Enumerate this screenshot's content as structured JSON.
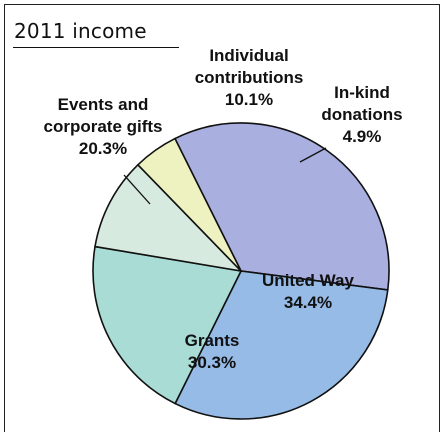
{
  "chart_data": {
    "type": "pie",
    "title": "2011 income",
    "unit": "%",
    "slices": [
      {
        "name": "United Way",
        "value": 34.4,
        "value_label": "34.4%",
        "color": "#a9afdf",
        "label_lines": [
          "United Way"
        ]
      },
      {
        "name": "Grants",
        "value": 30.3,
        "value_label": "30.3%",
        "color": "#95bbe6",
        "label_lines": [
          "Grants"
        ]
      },
      {
        "name": "Events and corporate gifts",
        "value": 20.3,
        "value_label": "20.3%",
        "color": "#a9dcd5",
        "label_lines": [
          "Events and",
          "corporate gifts"
        ]
      },
      {
        "name": "Individual contributions",
        "value": 10.1,
        "value_label": "10.1%",
        "color": "#d6eadf",
        "label_lines": [
          "Individual",
          "contributions"
        ]
      },
      {
        "name": "In-kind donations",
        "value": 4.9,
        "value_label": "4.9%",
        "color": "#eef2c0",
        "label_lines": [
          "In-kind",
          "donations"
        ]
      }
    ],
    "legend": "none",
    "stroke_color": "#111111"
  }
}
